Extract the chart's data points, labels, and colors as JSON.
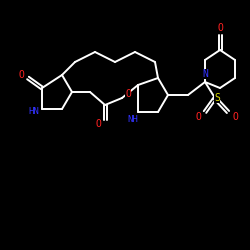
{
  "background_color": "#000000",
  "bond_color": "#ffffff",
  "atom_colors": {
    "O": "#ff2222",
    "N": "#3333ff",
    "S": "#dddd00",
    "C": "#ffffff",
    "H": "#ffffff"
  },
  "figsize": [
    2.5,
    2.5
  ],
  "dpi": 100,
  "lw": 1.4
}
